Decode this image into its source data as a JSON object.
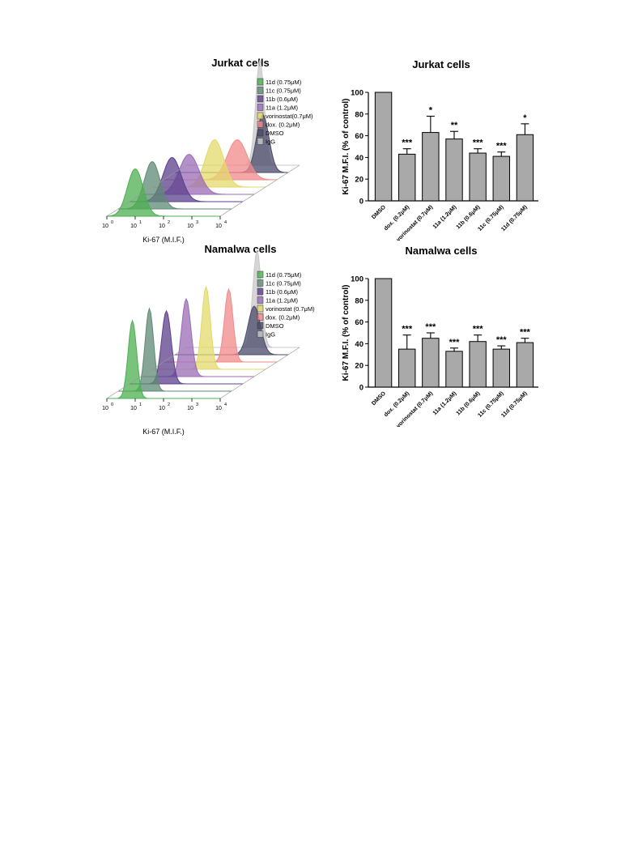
{
  "hist_panels": [
    {
      "title": "Jurkat cells",
      "xlabel": "Ki-67 (M.I.F.)",
      "ticks": [
        "10",
        "10",
        "10",
        "10",
        "10"
      ],
      "exps": [
        "0",
        "1",
        "2",
        "3",
        "4"
      ],
      "legend": [
        {
          "label": "11d (0.75μM)",
          "color": "#4caf50"
        },
        {
          "label": "11c (0.75μM)",
          "color": "#5e8a74"
        },
        {
          "label": "11b (0.6μM)",
          "color": "#5b3f8c"
        },
        {
          "label": "11a (1.2μM)",
          "color": "#9b6bb7"
        },
        {
          "label": "vorinostat(0.7μM)",
          "color": "#e3d96b"
        },
        {
          "label": "dox. (0.2μM)",
          "color": "#f28a8a"
        },
        {
          "label": "DMSO",
          "color": "#4a4a6a"
        },
        {
          "label": "IgG",
          "color": "#c8c8c8"
        }
      ],
      "peaks": [
        1.0,
        1.2,
        1.5,
        1.7,
        2.2,
        2.6,
        3.1,
        2.6
      ],
      "heights": [
        0.45,
        0.45,
        0.42,
        0.38,
        0.45,
        0.38,
        0.55,
        1.0
      ],
      "widths": [
        0.28,
        0.28,
        0.32,
        0.35,
        0.32,
        0.35,
        0.22,
        0.15
      ]
    },
    {
      "title": "Namalwa cells",
      "xlabel": "Ki-67 (M.I.F.)",
      "ticks": [
        "10",
        "10",
        "10",
        "10",
        "10"
      ],
      "exps": [
        "0",
        "1",
        "2",
        "3",
        "4"
      ],
      "legend": [
        {
          "label": "11d (0.75μM)",
          "color": "#4caf50"
        },
        {
          "label": "11c (0.75μM)",
          "color": "#5e8a74"
        },
        {
          "label": "11b (0.6μM)",
          "color": "#5b3f8c"
        },
        {
          "label": "11a (1.2μM)",
          "color": "#9b6bb7"
        },
        {
          "label": "vorinostat (0.7μM)",
          "color": "#e3d96b"
        },
        {
          "label": "dox. (0.2μM)",
          "color": "#f28a8a"
        },
        {
          "label": "DMSO",
          "color": "#4a4a6a"
        },
        {
          "label": "IgG",
          "color": "#c8c8c8"
        }
      ],
      "peaks": [
        0.9,
        1.1,
        1.3,
        1.6,
        1.9,
        2.3,
        2.8,
        2.5
      ],
      "heights": [
        0.8,
        0.85,
        0.75,
        0.8,
        0.85,
        0.75,
        0.5,
        1.0
      ],
      "widths": [
        0.15,
        0.15,
        0.17,
        0.17,
        0.15,
        0.15,
        0.22,
        0.15
      ]
    }
  ],
  "chart_data": [
    {
      "type": "bar",
      "title": "Jurkat cells",
      "ylabel": "Ki-67 M.F.I. (% of control)",
      "xlabel": "",
      "ylim": [
        0,
        100
      ],
      "yticks": [
        "0",
        "20",
        "40",
        "60",
        "80",
        "100"
      ],
      "categories": [
        "DMSO",
        "dox. (0.2μM)",
        "vorinostat (0.7μM)",
        "11a (1.2μM)",
        "11b (0.6μM)",
        "11c (0.75μM)",
        "11d (0.75μM)"
      ],
      "values": [
        100,
        43,
        63,
        57,
        44,
        41,
        61
      ],
      "errors": [
        0,
        5,
        15,
        7,
        4,
        4,
        10
      ],
      "significance": [
        "",
        "***",
        "*",
        "**",
        "***",
        "***",
        "*"
      ],
      "bar_color": "#a9a9a9"
    },
    {
      "type": "bar",
      "title": "Namalwa cells",
      "ylabel": "Ki-67 M.F.I. (% of control)",
      "xlabel": "",
      "ylim": [
        0,
        100
      ],
      "yticks": [
        "0",
        "20",
        "40",
        "60",
        "80",
        "100"
      ],
      "categories": [
        "DMSO",
        "dox. (0.2μM)",
        "vorinostat (0.7μM)",
        "11a (1.2μM)",
        "11b (0.6μM)",
        "11c (0.75μM)",
        "11d (0.75μM)"
      ],
      "values": [
        100,
        35,
        45,
        33,
        42,
        35,
        41
      ],
      "errors": [
        0,
        13,
        5,
        3,
        6,
        3,
        4
      ],
      "significance": [
        "",
        "***",
        "***",
        "***",
        "***",
        "***",
        "***"
      ],
      "bar_color": "#a9a9a9"
    }
  ]
}
